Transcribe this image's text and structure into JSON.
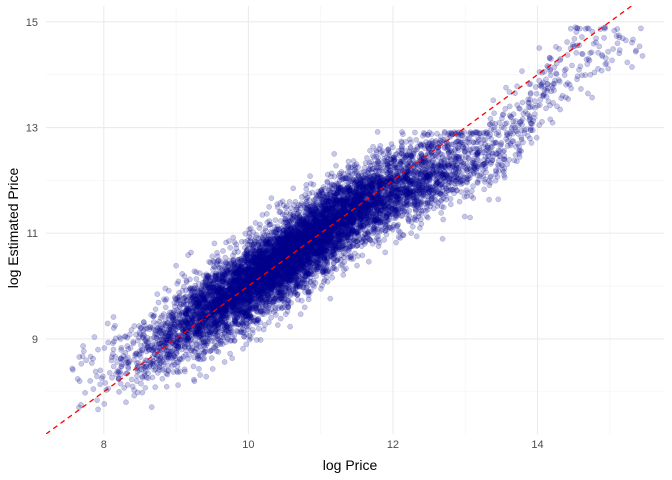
{
  "chart_data": {
    "type": "scatter",
    "title": "",
    "xlabel": "log Price",
    "ylabel": "log Estimated Price",
    "xlim": [
      7.2,
      15.75
    ],
    "ylim": [
      7.2,
      15.3
    ],
    "x_ticks": [
      8,
      10,
      12,
      14
    ],
    "x_tick_labels": [
      "8",
      "10",
      "12",
      "14"
    ],
    "y_ticks": [
      9,
      11,
      13,
      15
    ],
    "y_tick_labels": [
      "9",
      "11",
      "13",
      "15"
    ],
    "grid": true,
    "point_color": "#00008B",
    "point_opacity": 0.22,
    "reference_line": {
      "type": "identity",
      "slope": 1,
      "intercept": 0,
      "color": "#FF0000",
      "style": "dashed"
    },
    "cloud": {
      "description_points": [
        {
          "x": 7.7,
          "y": 8.3
        },
        {
          "x": 8.5,
          "y": 8.7
        },
        {
          "x": 9.5,
          "y": 9.6
        },
        {
          "x": 10.5,
          "y": 10.5
        },
        {
          "x": 11.5,
          "y": 11.5
        },
        {
          "x": 12.5,
          "y": 12.1
        },
        {
          "x": 13.5,
          "y": 12.6
        },
        {
          "x": 14.5,
          "y": 14.3
        },
        {
          "x": 15.3,
          "y": 14.7
        }
      ]
    }
  },
  "colors": {
    "background": "#FFFFFF",
    "grid_major": "#EBEBEB",
    "grid_minor": "#F5F5F5"
  }
}
